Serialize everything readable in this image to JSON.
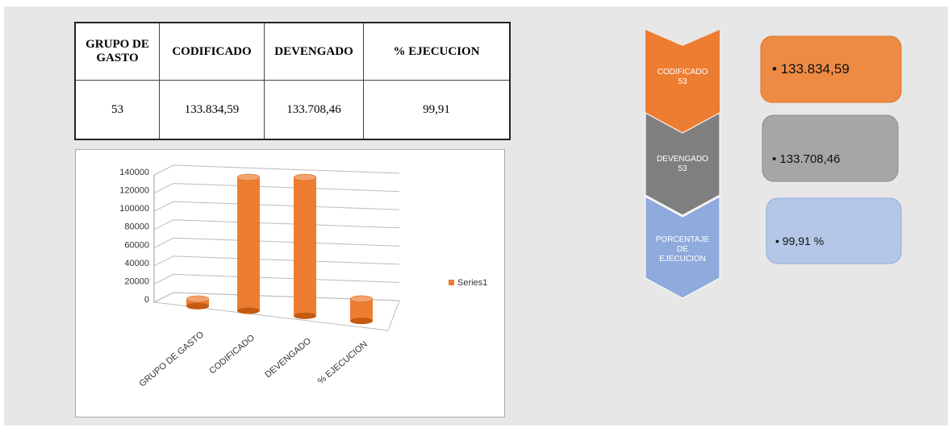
{
  "table": {
    "headers": [
      "GRUPO DE GASTO",
      "CODIFICADO",
      "DEVENGADO",
      "% EJECUCION"
    ],
    "rows": [
      [
        "53",
        "133.834,59",
        "133.708,46",
        "99,91"
      ]
    ]
  },
  "chart_data": {
    "type": "bar",
    "categories": [
      "GRUPO DE GASTO",
      "CODIFICADO",
      "DEVENGADO",
      "% EJECUCION"
    ],
    "series": [
      {
        "name": "Series1",
        "color": "#ed7d31",
        "values": [
          53,
          133834.59,
          133708.46,
          99.91
        ]
      }
    ],
    "ylim": [
      0,
      140000
    ],
    "yticks": [
      0,
      20000,
      40000,
      60000,
      80000,
      100000,
      120000,
      140000
    ],
    "grid": true,
    "legend": "right"
  },
  "diagram": {
    "steps": [
      {
        "label": "CODIFICADO 53",
        "value": "133.834,59"
      },
      {
        "label": "DEVENGADO 53",
        "value": "133.708,46"
      },
      {
        "label": "PORCENTAJE DE EJECUCION",
        "value": "99,91 %"
      }
    ]
  }
}
